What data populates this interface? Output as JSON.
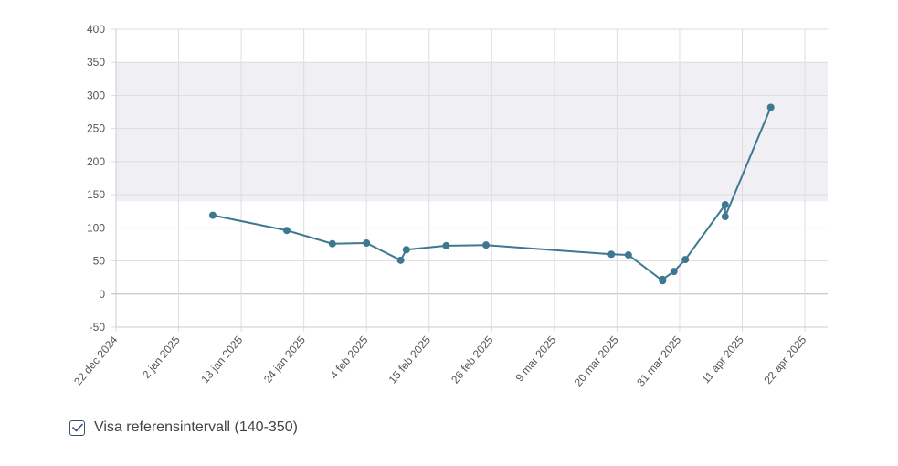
{
  "colors": {
    "line": "#3d7891",
    "band": "#efeff4",
    "grid": "#dedede",
    "axis": "#cccccc",
    "checkbox": "#3a4f7a"
  },
  "chart_data": {
    "type": "line",
    "title": "",
    "xlabel": "",
    "ylabel": "",
    "ylim": [
      -50,
      400
    ],
    "yticks": [
      400,
      350,
      300,
      250,
      200,
      150,
      100,
      50,
      0,
      -50
    ],
    "xlim": [
      "2024-12-22",
      "2025-04-26"
    ],
    "xticks": [
      {
        "date": "2024-12-22",
        "label": "22 dec 2024"
      },
      {
        "date": "2025-01-02",
        "label": "2 jan 2025"
      },
      {
        "date": "2025-01-13",
        "label": "13 jan 2025"
      },
      {
        "date": "2025-01-24",
        "label": "24 jan 2025"
      },
      {
        "date": "2025-02-04",
        "label": "4 feb 2025"
      },
      {
        "date": "2025-02-15",
        "label": "15 feb 2025"
      },
      {
        "date": "2025-02-26",
        "label": "26 feb 2025"
      },
      {
        "date": "2025-03-09",
        "label": "9 mar 2025"
      },
      {
        "date": "2025-03-20",
        "label": "20 mar 2025"
      },
      {
        "date": "2025-03-31",
        "label": "31 mar 2025"
      },
      {
        "date": "2025-04-11",
        "label": "11 apr 2025"
      },
      {
        "date": "2025-04-22",
        "label": "22 apr 2025"
      }
    ],
    "reference_band": [
      140,
      350
    ],
    "grid": true,
    "series": [
      {
        "points": [
          {
            "x": "2025-01-08",
            "y": 119
          },
          {
            "x": "2025-01-21",
            "y": 96
          },
          {
            "x": "2025-01-29",
            "y": 76
          },
          {
            "x": "2025-02-04",
            "y": 77
          },
          {
            "x": "2025-02-10",
            "y": 51
          },
          {
            "x": "2025-02-11",
            "y": 67
          },
          {
            "x": "2025-02-18",
            "y": 73
          },
          {
            "x": "2025-02-25",
            "y": 74
          },
          {
            "x": "2025-03-19",
            "y": 60
          },
          {
            "x": "2025-03-22",
            "y": 59
          },
          {
            "x": "2025-03-28",
            "y": 20
          },
          {
            "x": "2025-03-28",
            "y": 22
          },
          {
            "x": "2025-03-30",
            "y": 34
          },
          {
            "x": "2025-04-01",
            "y": 52
          },
          {
            "x": "2025-04-08",
            "y": 135
          },
          {
            "x": "2025-04-08",
            "y": 117
          },
          {
            "x": "2025-04-16",
            "y": 282
          }
        ]
      }
    ]
  },
  "legend": {
    "checked": true,
    "label": "Visa referensintervall (140-350)"
  }
}
